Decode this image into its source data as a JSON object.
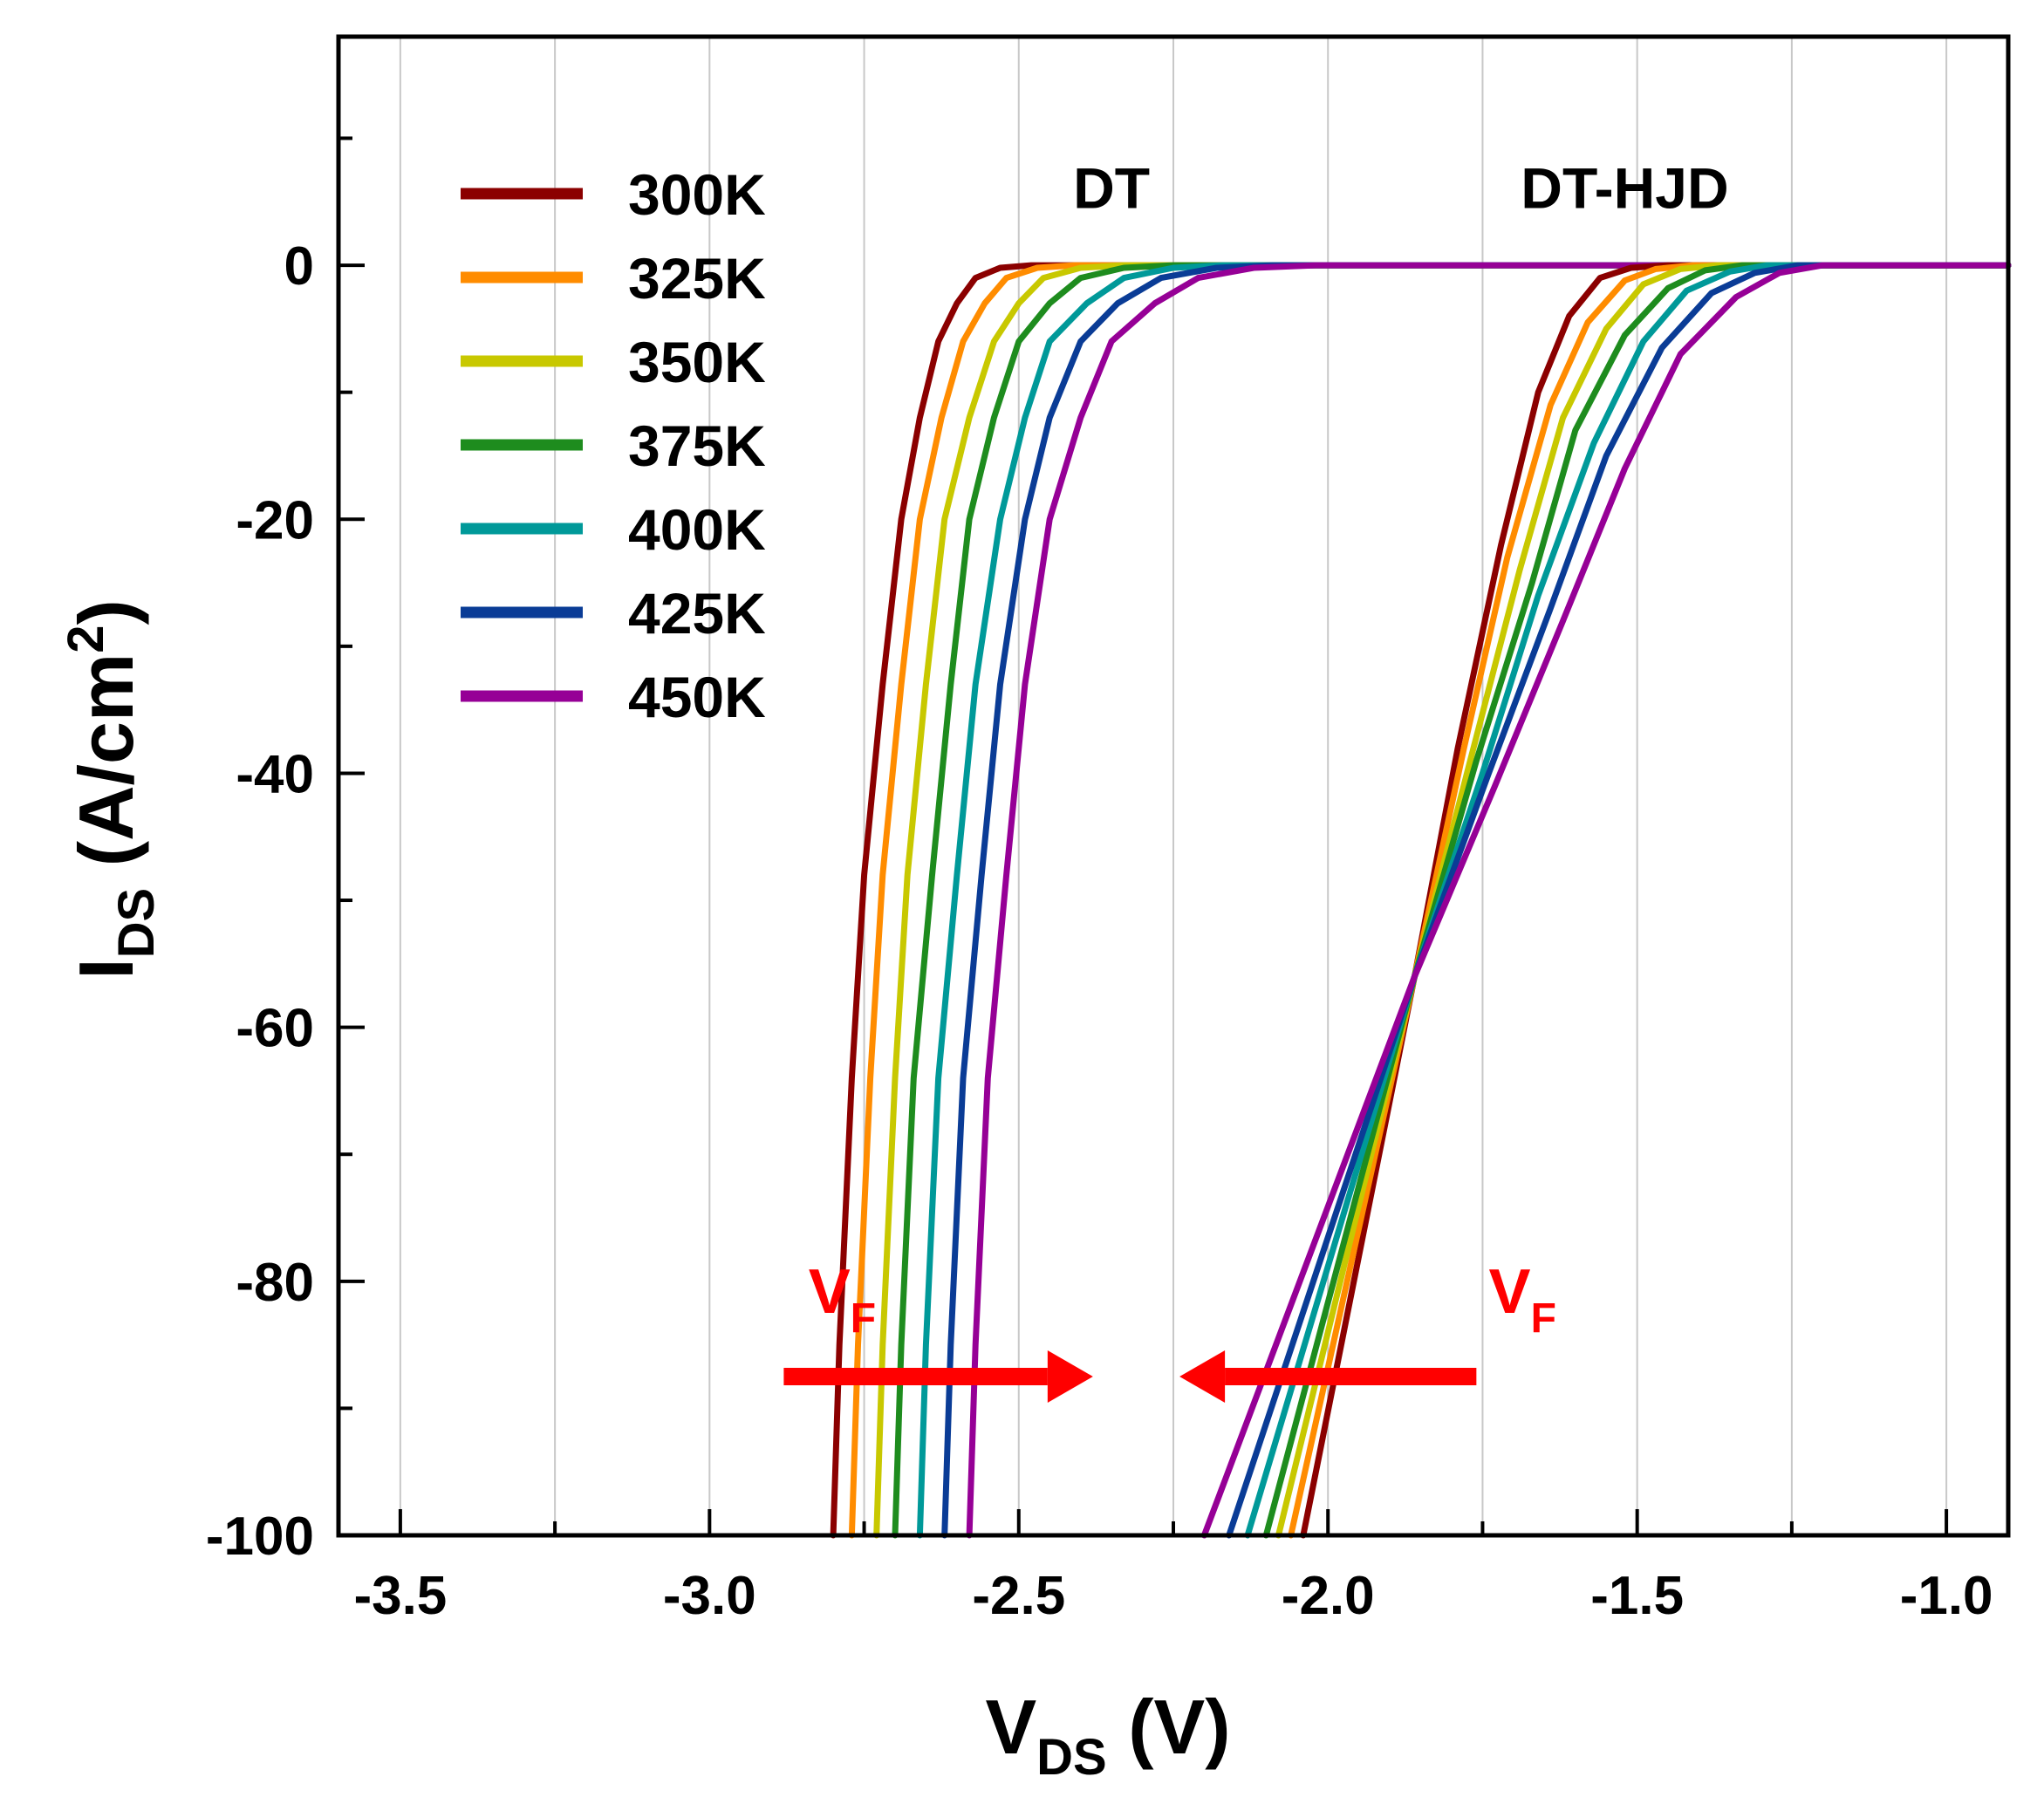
{
  "chart_data": {
    "type": "line",
    "xlabel": {
      "main": "V",
      "sub": "DS",
      "unit": " (V)"
    },
    "ylabel": {
      "main": "I",
      "sub": "DS",
      "unit": " (A/cm",
      "sup": "2",
      "close": ")"
    },
    "xlim": [
      -3.6,
      -0.9
    ],
    "ylim": [
      -100,
      18
    ],
    "x_ticks": [
      -3.5,
      -3.0,
      -2.5,
      -2.0,
      -1.5,
      -1.0
    ],
    "x_tick_labels": [
      "-3.5",
      "-3.0",
      "-2.5",
      "-2.0",
      "-1.5",
      "-1.0"
    ],
    "y_ticks": [
      -100,
      -80,
      -60,
      -40,
      -20,
      0
    ],
    "y_tick_labels": [
      "-100",
      "-80",
      "-60",
      "-40",
      "-20",
      "0"
    ],
    "grid": "vertical",
    "legend_position": "top-left",
    "series": [
      {
        "name": "300K",
        "color": "#8B0000"
      },
      {
        "name": "325K",
        "color": "#FF8C00"
      },
      {
        "name": "350K",
        "color": "#C8C800"
      },
      {
        "name": "375K",
        "color": "#1E8C1E"
      },
      {
        "name": "400K",
        "color": "#009999"
      },
      {
        "name": "425K",
        "color": "#0A3C96"
      },
      {
        "name": "450K",
        "color": "#960096"
      }
    ],
    "groups": [
      {
        "name": "DT",
        "curves": [
          [
            [
              -2.8,
              -100
            ],
            [
              -2.79,
              -85
            ],
            [
              -2.77,
              -64
            ],
            [
              -2.75,
              -48
            ],
            [
              -2.72,
              -33
            ],
            [
              -2.69,
              -20
            ],
            [
              -2.66,
              -12
            ],
            [
              -2.63,
              -6
            ],
            [
              -2.6,
              -3
            ],
            [
              -2.57,
              -1
            ],
            [
              -2.53,
              -0.2
            ],
            [
              -2.48,
              0
            ],
            [
              -0.9,
              0
            ]
          ],
          [
            [
              -2.77,
              -100
            ],
            [
              -2.76,
              -85
            ],
            [
              -2.74,
              -64
            ],
            [
              -2.72,
              -48
            ],
            [
              -2.69,
              -33
            ],
            [
              -2.66,
              -20
            ],
            [
              -2.625,
              -12
            ],
            [
              -2.59,
              -6
            ],
            [
              -2.555,
              -3
            ],
            [
              -2.52,
              -1
            ],
            [
              -2.47,
              -0.2
            ],
            [
              -2.41,
              0
            ],
            [
              -0.9,
              0
            ]
          ],
          [
            [
              -2.73,
              -100
            ],
            [
              -2.72,
              -85
            ],
            [
              -2.7,
              -64
            ],
            [
              -2.68,
              -48
            ],
            [
              -2.65,
              -33
            ],
            [
              -2.62,
              -20
            ],
            [
              -2.58,
              -12
            ],
            [
              -2.54,
              -6
            ],
            [
              -2.5,
              -3
            ],
            [
              -2.46,
              -1
            ],
            [
              -2.4,
              -0.2
            ],
            [
              -2.33,
              0
            ],
            [
              -0.9,
              0
            ]
          ],
          [
            [
              -2.7,
              -100
            ],
            [
              -2.69,
              -85
            ],
            [
              -2.67,
              -64
            ],
            [
              -2.64,
              -48
            ],
            [
              -2.61,
              -33
            ],
            [
              -2.58,
              -20
            ],
            [
              -2.54,
              -12
            ],
            [
              -2.5,
              -6
            ],
            [
              -2.45,
              -3
            ],
            [
              -2.4,
              -1
            ],
            [
              -2.33,
              -0.2
            ],
            [
              -2.25,
              0
            ],
            [
              -0.9,
              0
            ]
          ],
          [
            [
              -2.66,
              -100
            ],
            [
              -2.65,
              -85
            ],
            [
              -2.63,
              -64
            ],
            [
              -2.6,
              -48
            ],
            [
              -2.57,
              -33
            ],
            [
              -2.53,
              -20
            ],
            [
              -2.49,
              -12
            ],
            [
              -2.45,
              -6
            ],
            [
              -2.39,
              -3
            ],
            [
              -2.33,
              -1
            ],
            [
              -2.25,
              -0.2
            ],
            [
              -2.17,
              0
            ],
            [
              -0.9,
              0
            ]
          ],
          [
            [
              -2.62,
              -100
            ],
            [
              -2.61,
              -85
            ],
            [
              -2.59,
              -64
            ],
            [
              -2.56,
              -48
            ],
            [
              -2.53,
              -33
            ],
            [
              -2.49,
              -20
            ],
            [
              -2.45,
              -12
            ],
            [
              -2.4,
              -6
            ],
            [
              -2.34,
              -3
            ],
            [
              -2.27,
              -1
            ],
            [
              -2.18,
              -0.2
            ],
            [
              -2.09,
              0
            ],
            [
              -0.9,
              0
            ]
          ],
          [
            [
              -2.58,
              -100
            ],
            [
              -2.57,
              -85
            ],
            [
              -2.55,
              -64
            ],
            [
              -2.52,
              -48
            ],
            [
              -2.49,
              -33
            ],
            [
              -2.45,
              -20
            ],
            [
              -2.4,
              -12
            ],
            [
              -2.35,
              -6
            ],
            [
              -2.28,
              -3
            ],
            [
              -2.21,
              -1
            ],
            [
              -2.12,
              -0.2
            ],
            [
              -2.02,
              0
            ],
            [
              -0.9,
              0
            ]
          ]
        ]
      },
      {
        "name": "DT-HJD",
        "curves": [
          [
            [
              -2.04,
              -100
            ],
            [
              -1.86,
              -56
            ],
            [
              -1.79,
              -38
            ],
            [
              -1.72,
              -22
            ],
            [
              -1.66,
              -10
            ],
            [
              -1.61,
              -4
            ],
            [
              -1.56,
              -1
            ],
            [
              -1.51,
              -0.2
            ],
            [
              -1.45,
              0
            ],
            [
              -0.9,
              0
            ]
          ],
          [
            [
              -2.06,
              -100
            ],
            [
              -1.86,
              -56
            ],
            [
              -1.78,
              -38
            ],
            [
              -1.71,
              -23
            ],
            [
              -1.64,
              -11
            ],
            [
              -1.58,
              -4.5
            ],
            [
              -1.52,
              -1.2
            ],
            [
              -1.47,
              -0.3
            ],
            [
              -1.41,
              0
            ],
            [
              -0.9,
              0
            ]
          ],
          [
            [
              -2.08,
              -100
            ],
            [
              -1.86,
              -56
            ],
            [
              -1.77,
              -39
            ],
            [
              -1.69,
              -24
            ],
            [
              -1.62,
              -12
            ],
            [
              -1.55,
              -5
            ],
            [
              -1.49,
              -1.5
            ],
            [
              -1.43,
              -0.3
            ],
            [
              -1.37,
              0
            ],
            [
              -0.9,
              0
            ]
          ],
          [
            [
              -2.1,
              -100
            ],
            [
              -1.86,
              -56
            ],
            [
              -1.76,
              -39
            ],
            [
              -1.67,
              -25
            ],
            [
              -1.6,
              -13
            ],
            [
              -1.52,
              -5.5
            ],
            [
              -1.45,
              -1.8
            ],
            [
              -1.39,
              -0.4
            ],
            [
              -1.33,
              0
            ],
            [
              -0.9,
              0
            ]
          ],
          [
            [
              -2.13,
              -100
            ],
            [
              -1.86,
              -56
            ],
            [
              -1.75,
              -40
            ],
            [
              -1.66,
              -26
            ],
            [
              -1.57,
              -14
            ],
            [
              -1.49,
              -6
            ],
            [
              -1.42,
              -2
            ],
            [
              -1.35,
              -0.5
            ],
            [
              -1.29,
              0
            ],
            [
              -0.9,
              0
            ]
          ],
          [
            [
              -2.16,
              -100
            ],
            [
              -1.86,
              -56
            ],
            [
              -1.74,
              -40
            ],
            [
              -1.64,
              -27
            ],
            [
              -1.55,
              -15
            ],
            [
              -1.46,
              -6.5
            ],
            [
              -1.38,
              -2.2
            ],
            [
              -1.31,
              -0.6
            ],
            [
              -1.24,
              0
            ],
            [
              -0.9,
              0
            ]
          ],
          [
            [
              -2.2,
              -100
            ],
            [
              -1.86,
              -56
            ],
            [
              -1.73,
              -41
            ],
            [
              -1.62,
              -28
            ],
            [
              -1.52,
              -16
            ],
            [
              -1.43,
              -7
            ],
            [
              -1.34,
              -2.5
            ],
            [
              -1.27,
              -0.6
            ],
            [
              -1.2,
              0
            ],
            [
              -0.9,
              0
            ]
          ]
        ]
      }
    ],
    "annotations": [
      {
        "name": "group-label-dt",
        "text": "DT",
        "x": -2.35,
        "y": 4.5
      },
      {
        "name": "group-label-dt-hjd",
        "text": "DT-HJD",
        "x": -1.52,
        "y": 4.5
      }
    ],
    "arrows": [
      {
        "name": "vf-arrow-dt",
        "label": {
          "main": "V",
          "sub": "F"
        },
        "from": [
          -2.88,
          -87.5
        ],
        "to": [
          -2.38,
          -87.5
        ],
        "label_at": [
          -2.84,
          -82.5
        ],
        "color": "#FF0000"
      },
      {
        "name": "vf-arrow-dt-hjd",
        "label": {
          "main": "V",
          "sub": "F"
        },
        "from": [
          -1.76,
          -87.5
        ],
        "to": [
          -2.24,
          -87.5
        ],
        "label_at": [
          -1.74,
          -82.5
        ],
        "color": "#FF0000"
      }
    ]
  }
}
